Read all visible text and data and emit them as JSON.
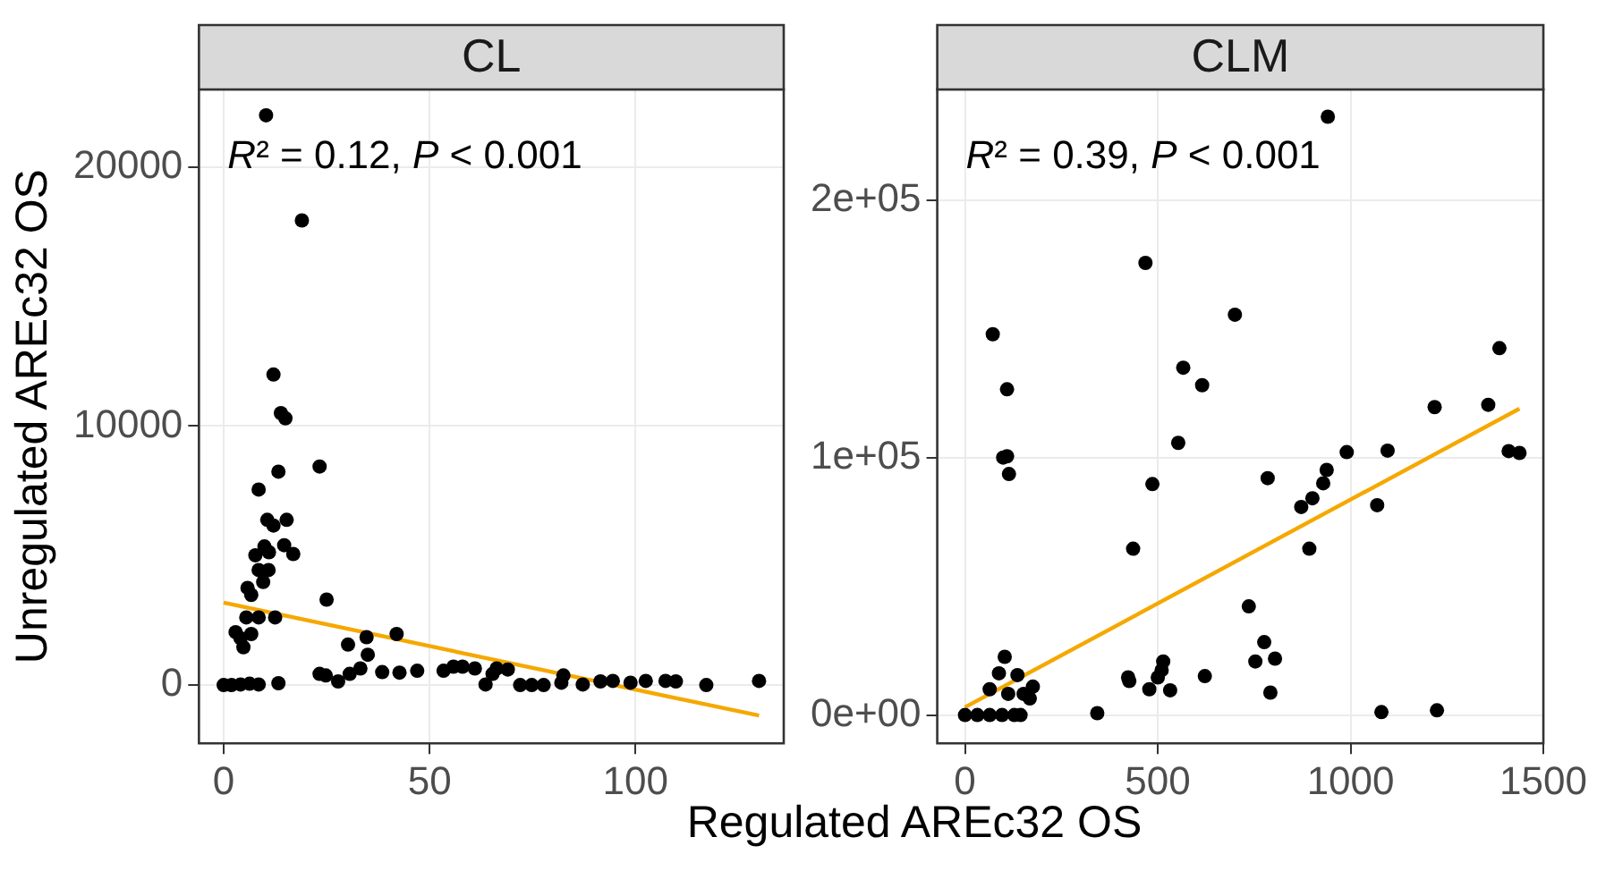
{
  "chart_data": [
    {
      "type": "scatter",
      "title": "CL",
      "xlabel": "Regulated AREc32 OS",
      "ylabel": "Unregulated AREc32 OS",
      "annotations": [
        "R² = 0.12, P < 0.001"
      ],
      "xlim": [
        -6,
        136
      ],
      "xticks": [
        0,
        50,
        100
      ],
      "ylim": [
        -2250,
        23000
      ],
      "yticks": [
        0,
        10000,
        20000
      ],
      "grid": true,
      "legend": false,
      "series": [
        {
          "marker": "circle",
          "color": "#000000",
          "x": [
            10.3,
            19,
            12.1,
            13.9,
            15,
            23.3,
            13.3,
            8.5,
            10.6,
            12.1,
            15.3,
            7.7,
            9.9,
            11,
            14.7,
            16.9,
            8.5,
            10.9,
            9.6,
            5.8,
            6.7,
            25,
            5.5,
            8.5,
            12.5,
            2.9,
            4.1,
            6.7,
            4.8,
            30.2,
            34.7,
            35,
            42,
            33.2,
            30.6,
            23.3,
            24.8,
            27.8,
            38.5,
            42.7,
            47,
            53.4,
            55.8,
            58,
            61,
            63.6,
            65.3,
            66.3,
            69,
            72,
            74.8,
            77.7,
            82,
            82.5,
            87.2,
            91.5,
            94.5,
            98.8,
            102.5,
            107.3,
            109.8,
            117.2,
            130,
            0,
            1.9,
            4.1,
            6.3,
            8.5,
            13.3
          ],
          "values": [
            22000,
            17940,
            11990,
            10500,
            10300,
            8440,
            8240,
            7550,
            6380,
            6160,
            6380,
            5010,
            5350,
            5130,
            5400,
            5060,
            4440,
            4440,
            3980,
            3750,
            3480,
            3300,
            2610,
            2610,
            2610,
            2040,
            1810,
            1970,
            1460,
            1560,
            1850,
            1170,
            1970,
            640,
            430,
            430,
            370,
            140,
            500,
            480,
            550,
            550,
            710,
            710,
            640,
            20,
            430,
            640,
            600,
            0,
            0,
            0,
            90,
            370,
            20,
            140,
            160,
            90,
            160,
            160,
            140,
            0,
            160,
            0,
            0,
            20,
            50,
            20,
            70
          ]
        },
        {
          "type": "line",
          "marker": "none",
          "color": "#f5a800",
          "x": [
            0,
            130
          ],
          "values": [
            3180,
            -1180
          ]
        }
      ]
    },
    {
      "type": "scatter",
      "title": "CLM",
      "annotations": [
        "R² = 0.39, P < 0.001"
      ],
      "xlim": [
        -72,
        1500
      ],
      "xticks": [
        0,
        500,
        1000,
        1500
      ],
      "ylim": [
        -11000,
        243000
      ],
      "yticks": [
        {
          "value": 0,
          "label": "0e+00"
        },
        {
          "value": 100000,
          "label": "1e+05"
        },
        {
          "value": 200000,
          "label": "2e+05"
        }
      ],
      "grid": true,
      "legend": false,
      "series": [
        {
          "marker": "circle",
          "color": "#000000",
          "x": [
            941,
            468,
            700,
            72,
            1386,
            566,
            109,
            615,
            1218,
            1357,
            553,
            99,
            109,
            114,
            990,
            1096,
            1410,
            1438,
            785,
            486,
            938,
            929,
            901,
            872,
            1069,
            436,
            893,
            736,
            776,
            753,
            804,
            792,
            514,
            510,
            500,
            478,
            532,
            423,
            426,
            622,
            343,
            1080,
            1224,
            103,
            64,
            88,
            112,
            136,
            152,
            176,
            168,
            0,
            32,
            64,
            96,
            128,
            144
          ],
          "values": [
            232400,
            175600,
            155500,
            147900,
            142500,
            134900,
            126500,
            128100,
            119600,
            120500,
            105700,
            100000,
            100500,
            93600,
            102100,
            102700,
            102500,
            101800,
            92000,
            89700,
            95200,
            90000,
            84200,
            80800,
            81500,
            64600,
            64600,
            42200,
            28300,
            20800,
            21900,
            8700,
            20800,
            17400,
            14600,
            10000,
            9600,
            14600,
            13200,
            15100,
            700,
            1100,
            1800,
            22600,
            10000,
            16200,
            8200,
            15500,
            8200,
            11000,
            6400,
            0,
            0,
            0,
            0,
            0,
            0
          ]
        },
        {
          "type": "line",
          "marker": "none",
          "color": "#f5a800",
          "x": [
            0,
            1438
          ],
          "values": [
            3000,
            119000
          ]
        }
      ]
    }
  ]
}
